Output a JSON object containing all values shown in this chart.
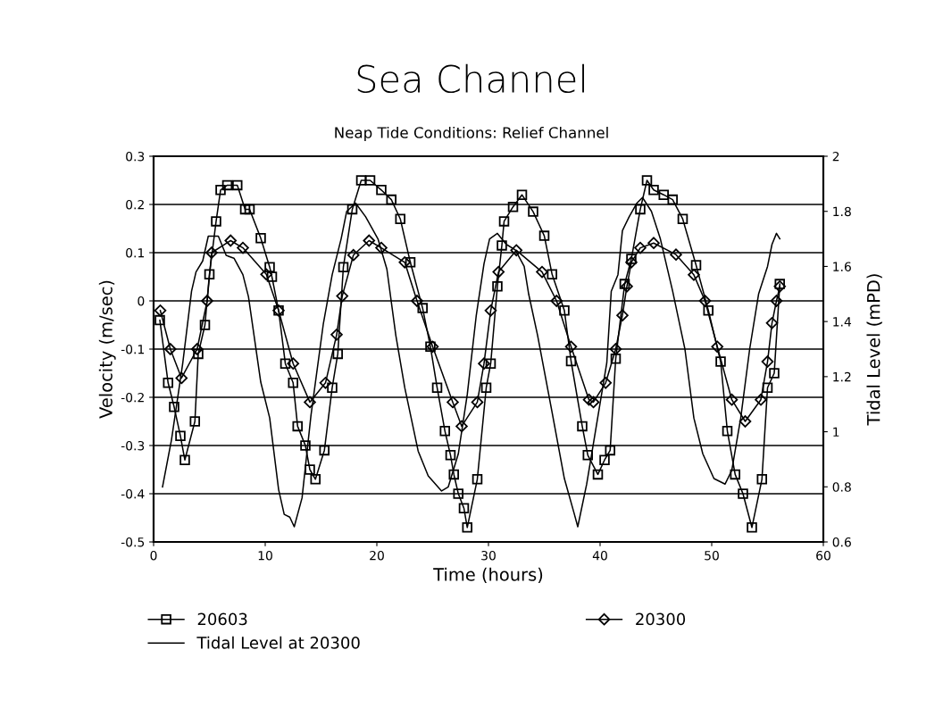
{
  "chart_data": {
    "type": "line",
    "title": "Sea Channel",
    "subtitle": "Neap Tide Conditions: Relief Channel",
    "xlabel": "Time (hours)",
    "ylabel": "Velocity (m/sec)",
    "y2label": "Tidal Level (mPD)",
    "xlim": [
      0,
      60
    ],
    "xticks": [
      0,
      10,
      20,
      30,
      40,
      50,
      60
    ],
    "ylim": [
      -0.5,
      0.3
    ],
    "yticks": [
      -0.5,
      -0.4,
      -0.3,
      -0.2,
      -0.1,
      0,
      0.1,
      0.2,
      0.3
    ],
    "y2lim": [
      0.6,
      2
    ],
    "y2ticks": [
      0.6,
      0.8,
      1,
      1.2,
      1.4,
      1.6,
      1.8,
      2
    ],
    "grid": "y",
    "legend": "bottom",
    "line_style": "solid",
    "series": [
      {
        "name": "20603",
        "color": "#000000",
        "marker": "square",
        "x": [
          0.56,
          1.3,
          1.84,
          2.4,
          2.8,
          3.7,
          4.0,
          4.6,
          5.0,
          5.6,
          6.0,
          6.6,
          7.5,
          8.2,
          8.6,
          9.6,
          10.4,
          10.6,
          11.2,
          11.8,
          12.5,
          12.9,
          13.6,
          14.0,
          14.5,
          15.3,
          16.0,
          16.5,
          17.0,
          17.8,
          18.6,
          19.4,
          20.4,
          21.3,
          22.1,
          23.0,
          24.1,
          24.8,
          25.4,
          26.1,
          26.6,
          26.9,
          27.3,
          27.8,
          28.1,
          29.0,
          29.8,
          30.2,
          30.8,
          31.2,
          31.4,
          32.2,
          33.0,
          34.0,
          35.0,
          35.7,
          36.8,
          37.4,
          38.4,
          38.9,
          39.8,
          40.4,
          40.9,
          41.4,
          42.2,
          42.8,
          43.6,
          44.2,
          44.8,
          45.7,
          46.5,
          47.4,
          48.6,
          49.7,
          50.8,
          51.4,
          52.1,
          52.8,
          53.6,
          54.5,
          55.0,
          55.6,
          56.1
        ],
        "values": [
          -0.04,
          -0.17,
          -0.22,
          -0.28,
          -0.33,
          -0.25,
          -0.11,
          -0.05,
          0.055,
          0.165,
          0.23,
          0.24,
          0.24,
          0.19,
          0.19,
          0.13,
          0.07,
          0.05,
          -0.02,
          -0.13,
          -0.17,
          -0.26,
          -0.3,
          -0.35,
          -0.37,
          -0.31,
          -0.18,
          -0.11,
          0.07,
          0.19,
          0.25,
          0.25,
          0.23,
          0.21,
          0.17,
          0.08,
          -0.015,
          -0.095,
          -0.18,
          -0.27,
          -0.32,
          -0.36,
          -0.4,
          -0.43,
          -0.47,
          -0.37,
          -0.18,
          -0.13,
          0.03,
          0.115,
          0.165,
          0.195,
          0.22,
          0.185,
          0.135,
          0.055,
          -0.02,
          -0.125,
          -0.26,
          -0.32,
          -0.36,
          -0.33,
          -0.31,
          -0.12,
          0.035,
          0.087,
          0.19,
          0.25,
          0.23,
          0.22,
          0.21,
          0.17,
          0.074,
          -0.02,
          -0.126,
          -0.27,
          -0.36,
          -0.4,
          -0.47,
          -0.37,
          -0.18,
          -0.15,
          0.035
        ]
      },
      {
        "name": "20300",
        "color": "#000000",
        "marker": "diamond",
        "x": [
          0.6,
          1.5,
          2.5,
          3.9,
          4.8,
          5.2,
          6.9,
          8.0,
          10.1,
          11.2,
          12.5,
          14.0,
          15.4,
          16.4,
          16.9,
          17.9,
          19.3,
          20.4,
          22.5,
          23.6,
          25.0,
          26.8,
          27.6,
          29.0,
          29.6,
          30.2,
          30.9,
          32.5,
          34.8,
          36.1,
          37.4,
          39.0,
          39.4,
          40.5,
          41.4,
          42.0,
          42.4,
          42.8,
          43.6,
          44.8,
          46.8,
          48.4,
          49.4,
          50.5,
          51.8,
          53.0,
          54.4,
          55.0,
          55.4,
          55.8,
          56.1
        ],
        "values": [
          -0.02,
          -0.1,
          -0.16,
          -0.1,
          0.0,
          0.1,
          0.125,
          0.11,
          0.055,
          -0.02,
          -0.13,
          -0.21,
          -0.17,
          -0.07,
          0.01,
          0.095,
          0.125,
          0.11,
          0.08,
          0.0,
          -0.095,
          -0.21,
          -0.26,
          -0.21,
          -0.13,
          -0.02,
          0.06,
          0.105,
          0.06,
          0.0,
          -0.095,
          -0.205,
          -0.21,
          -0.17,
          -0.1,
          -0.03,
          0.03,
          0.08,
          0.11,
          0.12,
          0.096,
          0.054,
          0.0,
          -0.095,
          -0.205,
          -0.25,
          -0.205,
          -0.126,
          -0.046,
          0.0,
          0.03
        ]
      },
      {
        "name": "Tidal Level at 20300",
        "color": "#000000",
        "marker": "none",
        "axis": "y2",
        "x": [
          0.8,
          1.6,
          2.6,
          3.4,
          3.8,
          4.4,
          4.9,
          5.8,
          6.5,
          7.2,
          8.0,
          8.5,
          9.6,
          10.4,
          11.2,
          11.7,
          12.2,
          12.6,
          13.3,
          14.1,
          15.2,
          16.0,
          16.8,
          17.3,
          18.1,
          19.0,
          20.1,
          20.9,
          21.7,
          22.5,
          23.7,
          24.6,
          25.8,
          26.4,
          27.3,
          28.1,
          28.9,
          29.6,
          30.1,
          30.8,
          31.6,
          32.4,
          33.2,
          33.6,
          34.4,
          35.7,
          36.8,
          37.7,
          38.0,
          38.8,
          40.6,
          41.0,
          41.6,
          42.0,
          42.6,
          43.3,
          43.8,
          44.6,
          45.4,
          46.5,
          47.6,
          48.4,
          49.2,
          50.2,
          51.2,
          51.8,
          52.6,
          53.4,
          54.2,
          55.0,
          55.4,
          55.8,
          56.1
        ],
        "values": [
          0.8,
          0.97,
          1.245,
          1.51,
          1.58,
          1.62,
          1.71,
          1.71,
          1.64,
          1.63,
          1.57,
          1.49,
          1.18,
          1.05,
          0.79,
          0.7,
          0.69,
          0.655,
          0.76,
          1.06,
          1.39,
          1.57,
          1.7,
          1.8,
          1.83,
          1.78,
          1.7,
          1.59,
          1.35,
          1.16,
          0.93,
          0.84,
          0.785,
          0.8,
          0.92,
          1.135,
          1.42,
          1.61,
          1.7,
          1.72,
          1.68,
          1.66,
          1.6,
          1.5,
          1.35,
          1.07,
          0.83,
          0.7,
          0.655,
          0.81,
          1.25,
          1.51,
          1.57,
          1.73,
          1.78,
          1.83,
          1.85,
          1.8,
          1.7,
          1.51,
          1.3,
          1.05,
          0.92,
          0.83,
          0.81,
          0.86,
          1.05,
          1.3,
          1.5,
          1.6,
          1.68,
          1.72,
          1.7
        ]
      }
    ]
  }
}
